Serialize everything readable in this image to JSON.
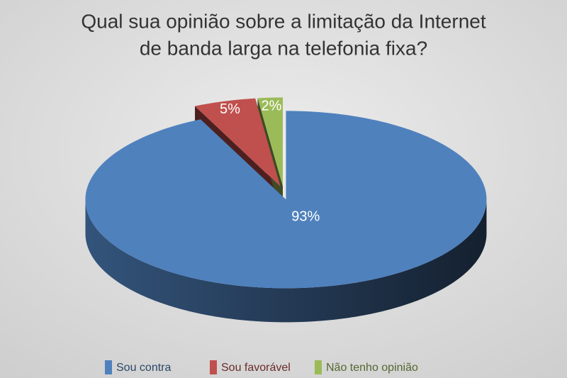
{
  "chart_data": {
    "type": "pie",
    "title": [
      "Qual sua opinião sobre a limitação da Internet",
      "de banda larga na telefonia fixa?"
    ],
    "categories": [
      "Sou contra",
      "Sou favorável",
      "Não tenho opinião"
    ],
    "values": [
      93,
      5,
      2
    ],
    "value_labels": [
      "93%",
      "5%",
      "2%"
    ],
    "colors": [
      "#4f81bd",
      "#c0504d",
      "#9bbb59"
    ],
    "legend": "bottom"
  }
}
